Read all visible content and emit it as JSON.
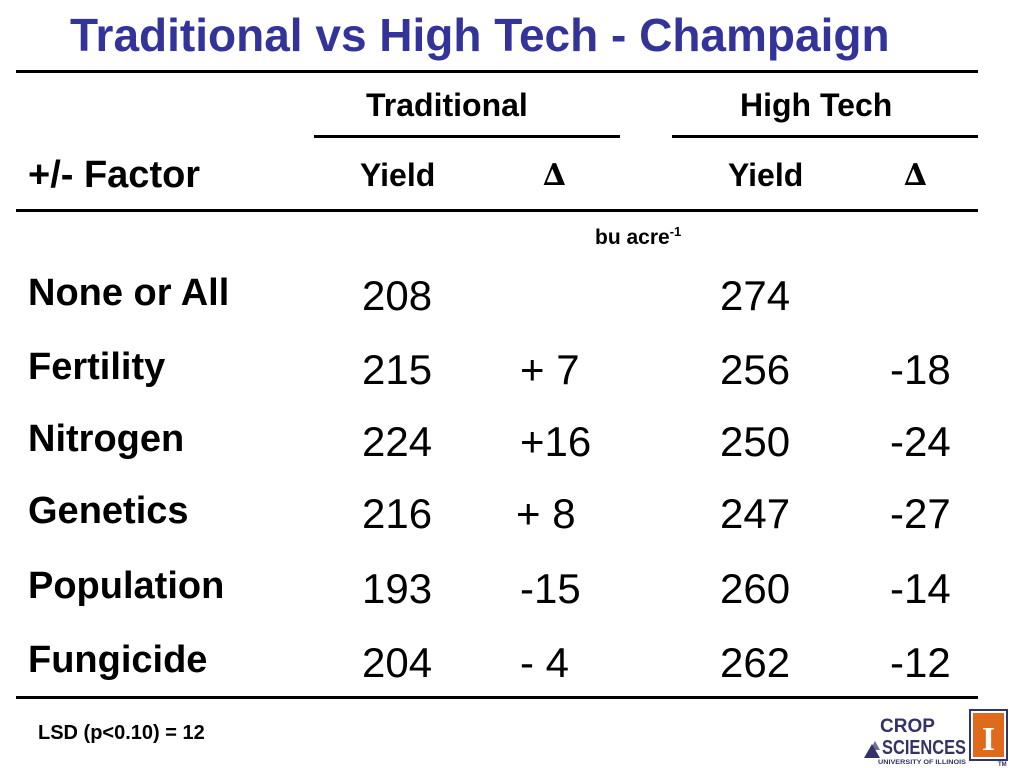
{
  "slide": {
    "title": "Traditional vs High Tech - Champaign",
    "groups": {
      "traditional": "Traditional",
      "high_tech": "High Tech"
    },
    "factor_header": "+/- Factor",
    "yield_header": "Yield",
    "delta_symbol": "∆",
    "unit": "bu acre",
    "unit_exponent": "-1",
    "rows": [
      {
        "factor": "None or All",
        "trad_yield": "208",
        "trad_delta": "",
        "ht_yield": "274",
        "ht_delta": ""
      },
      {
        "factor": "Fertility",
        "trad_yield": "215",
        "trad_delta": "+ 7",
        "ht_yield": "256",
        "ht_delta": "-18"
      },
      {
        "factor": "Nitrogen",
        "trad_yield": "224",
        "trad_delta": "+16",
        "ht_yield": "250",
        "ht_delta": "-24"
      },
      {
        "factor": "Genetics",
        "trad_yield": "216",
        "trad_delta": "+ 8",
        "ht_yield": "247",
        "ht_delta": "-27"
      },
      {
        "factor": "Population",
        "trad_yield": "193",
        "trad_delta": "-15",
        "ht_yield": "260",
        "ht_delta": "-14"
      },
      {
        "factor": "Fungicide",
        "trad_yield": "204",
        "trad_delta": "- 4",
        "ht_yield": "262",
        "ht_delta": "-12"
      }
    ],
    "lsd_note": "LSD (p<0.10) = 12",
    "logo": {
      "line1": "CROP",
      "line2": "SCIENCES",
      "line3": "UNIVERSITY OF ILLINOIS",
      "tm": "TM",
      "emblem_letter": "I"
    }
  }
}
